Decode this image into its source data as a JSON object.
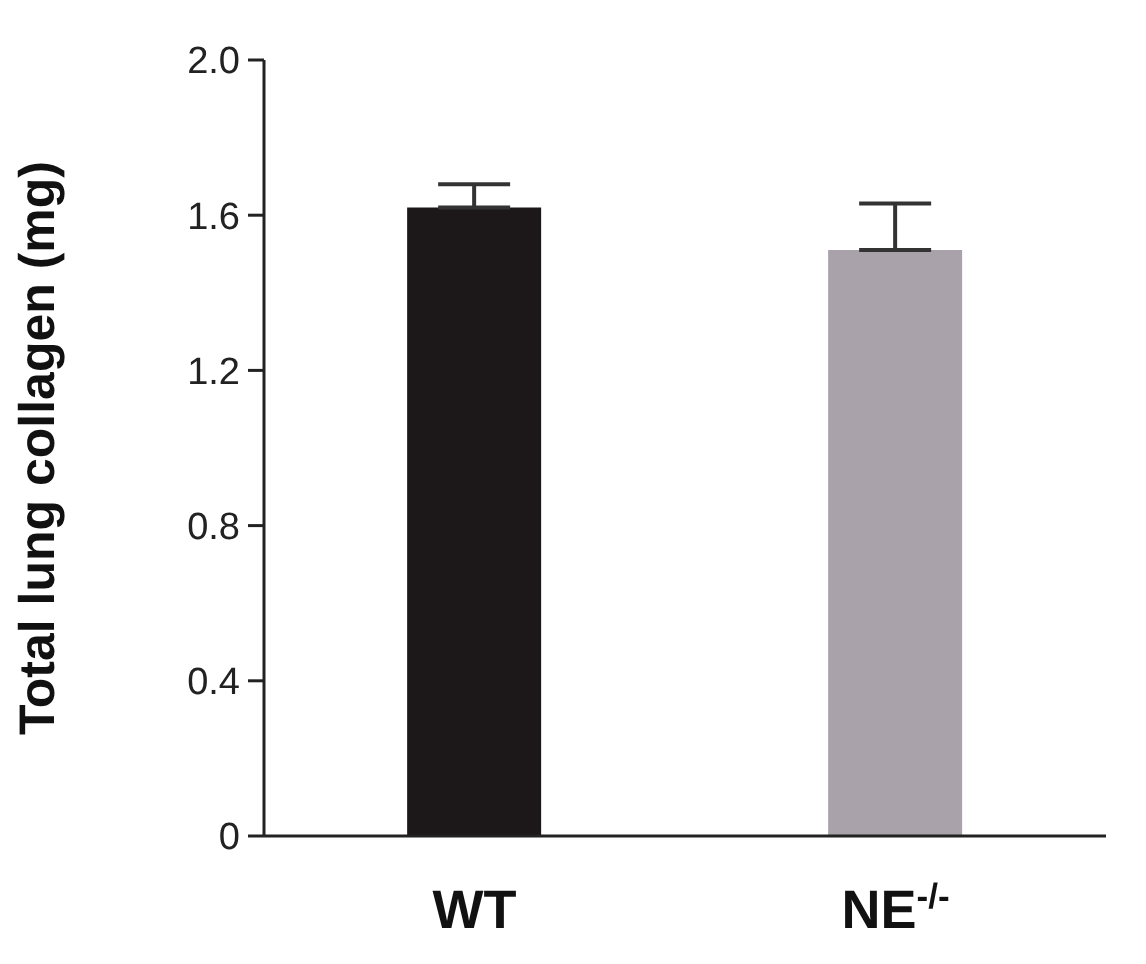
{
  "chart_data": {
    "type": "bar",
    "ylabel": "Total lung collagen (mg)",
    "categories": [
      "WT",
      "NE$^{-/-}$"
    ],
    "values": [
      1.62,
      1.51
    ],
    "colors": [
      "#1c1719",
      "#a9a2ab"
    ],
    "errors": [
      [
        1.62,
        1.68
      ],
      [
        1.51,
        1.63
      ]
    ],
    "ylim": [
      0,
      2
    ],
    "yticks": [
      0,
      0.4,
      0.8,
      1.2,
      1.6,
      {
        "value": 2,
        "label": "2.0"
      }
    ],
    "grid": false,
    "legend": false
  }
}
